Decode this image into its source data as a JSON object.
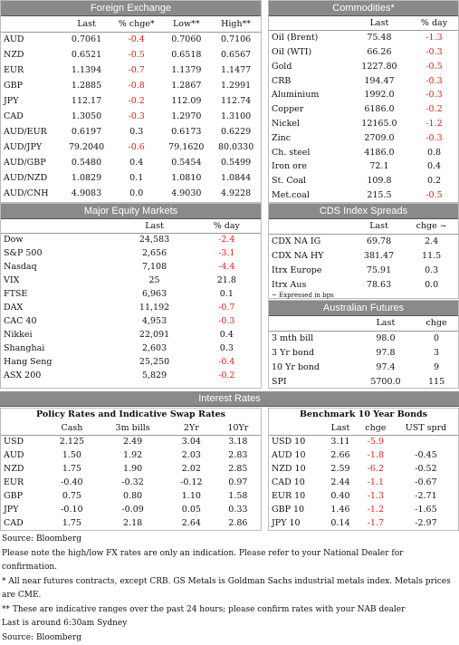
{
  "foreign_exchange": {
    "title": "Foreign Exchange",
    "columns": [
      "Last",
      "% chge*",
      "Low**",
      "High**"
    ],
    "rows": [
      [
        "AUD",
        "0.7061",
        "-0.4",
        "0.7060",
        "0.7106"
      ],
      [
        "NZD",
        "0.6521",
        "-0.5",
        "0.6518",
        "0.6567"
      ],
      [
        "EUR",
        "1.1394",
        "-0.7",
        "1.1379",
        "1.1477"
      ],
      [
        "GBP",
        "1.2885",
        "-0.8",
        "1.2867",
        "1.2991"
      ],
      [
        "JPY",
        "112.17",
        "-0.2",
        "112.09",
        "112.74"
      ],
      [
        "CAD",
        "1.3050",
        "-0.3",
        "1.2970",
        "1.3100"
      ],
      [
        "AUD/EUR",
        "0.6197",
        "0.3",
        "0.6173",
        "0.6229"
      ],
      [
        "AUD/JPY",
        "79.2040",
        "-0.6",
        "79.1620",
        "80.0330"
      ],
      [
        "AUD/GBP",
        "0.5480",
        "0.4",
        "0.5454",
        "0.5499"
      ],
      [
        "AUD/NZD",
        "1.0829",
        "0.1",
        "1.0810",
        "1.0844"
      ],
      [
        "AUD/CNH",
        "4.9083",
        "0.0",
        "4.9030",
        "4.9228"
      ]
    ]
  },
  "commodities": {
    "title": "Commodities*",
    "columns": [
      "Last",
      "% day"
    ],
    "rows": [
      [
        "Oil (Brent)",
        "75.48",
        "-1.3"
      ],
      [
        "Oil (WTI)",
        "66.26",
        "-0.3"
      ],
      [
        "Gold",
        "1227.80",
        "-0.5"
      ],
      [
        "CRB",
        "194.47",
        "-0.3"
      ],
      [
        "Aluminium",
        "1992.0",
        "-0.3"
      ],
      [
        "Copper",
        "6186.0",
        "-0.2"
      ],
      [
        "Nickel",
        "12165.0",
        "-1.2"
      ],
      [
        "Zinc",
        "2709.0",
        "-0.3"
      ],
      [
        "Ch. steel",
        "4186.0",
        "0.8"
      ],
      [
        "Iron ore",
        "72.1",
        "0.4"
      ],
      [
        "St. Coal",
        "109.8",
        "0.2"
      ],
      [
        "Met.coal",
        "215.5",
        "-0.5"
      ]
    ]
  },
  "equity_markets": {
    "title": "Major Equity Markets",
    "columns": [
      "Last",
      "% day"
    ],
    "rows": [
      [
        "Dow",
        "24,583",
        "-2.4"
      ],
      [
        "S&P 500",
        "2,656",
        "-3.1"
      ],
      [
        "Nasdaq",
        "7,108",
        "-4.4"
      ],
      [
        "VIX",
        "25",
        "21.8"
      ],
      [
        "FTSE",
        "6,963",
        "0.1"
      ],
      [
        "DAX",
        "11,192",
        "-0.7"
      ],
      [
        "CAC 40",
        "4,953",
        "-0.3"
      ],
      [
        "Nikkei",
        "22,091",
        "0.4"
      ],
      [
        "Shanghai",
        "2,603",
        "0.3"
      ],
      [
        "Hang Seng",
        "25,250",
        "-0.4"
      ],
      [
        "ASX 200",
        "5,829",
        "-0.2"
      ]
    ]
  },
  "cds_spreads": {
    "title": "CDS Index Spreads",
    "columns": [
      "Last",
      "chge ~"
    ],
    "rows": [
      [
        "CDX NA IG",
        "69.78",
        "2.4"
      ],
      [
        "CDX NA HY",
        "381.47",
        "11.5"
      ],
      [
        "Itrx Europe",
        "75.91",
        "0.3"
      ],
      [
        "Itrx Aus",
        "78.63",
        "0.0"
      ]
    ],
    "note": "~ Expressed in bps"
  },
  "australian_futures": {
    "title": "Australian Futures",
    "columns": [
      "Last",
      "chge"
    ],
    "rows": [
      [
        "3 mth bill",
        "98.0",
        "0"
      ],
      [
        "3 Yr bond",
        "97.8",
        "3"
      ],
      [
        "10 Yr bond",
        "97.4",
        "9"
      ],
      [
        "SPI",
        "5700.0",
        "115"
      ]
    ]
  },
  "interest_rates": {
    "title": "Interest Rates",
    "policy_rates": {
      "title": "Policy Rates and Indicative Swap Rates",
      "columns": [
        "Cash",
        "3m bills",
        "2Yr",
        "10Yr"
      ],
      "rows": [
        [
          "USD",
          "2.125",
          "2.49",
          "3.04",
          "3.18"
        ],
        [
          "AUD",
          "1.50",
          "1.92",
          "2.03",
          "2.83"
        ],
        [
          "NZD",
          "1.75",
          "1.90",
          "2.02",
          "2.85"
        ],
        [
          "EUR",
          "-0.40",
          "-0.32",
          "-0.12",
          "0.97"
        ],
        [
          "GBP",
          "0.75",
          "0.80",
          "1.10",
          "1.58"
        ],
        [
          "JPY",
          "-0.10",
          "-0.09",
          "0.05",
          "0.33"
        ],
        [
          "CAD",
          "1.75",
          "2.18",
          "2.64",
          "2.86"
        ]
      ]
    },
    "bonds": {
      "title": "Benchmark 10 Year Bonds",
      "columns": [
        "Last",
        "chge",
        "UST sprd"
      ],
      "rows": [
        [
          "USD 10",
          "3.11",
          "-5.9",
          null
        ],
        [
          "AUD 10",
          "2.66",
          "-1.8",
          "-0.45"
        ],
        [
          "NZD 10",
          "2.59",
          "-6.2",
          "-0.52"
        ],
        [
          "CAD 10",
          "2.44",
          "-1.1",
          "-0.67"
        ],
        [
          "EUR 10",
          "0.40",
          "-1.3",
          "-2.71"
        ],
        [
          "GBP 10",
          "1.46",
          "-1.2",
          "-1.65"
        ],
        [
          "JPY 10",
          "0.14",
          "-1.7",
          "-2.97"
        ]
      ]
    }
  },
  "footer": [
    "Source: Bloomberg",
    "Please note the high/low FX rates are only an indication. Please refer to your National Dealer for confirmation.",
    "* All near futures contracts, except CRB. GS Metals is Goldman Sachs industrial metals index.  Metals prices are CME.",
    "** These are indicative ranges over the past 24 hours; please confirm rates with your NAB dealer",
    "Last is around 6:30am Sydney",
    "Source: Bloomberg"
  ]
}
